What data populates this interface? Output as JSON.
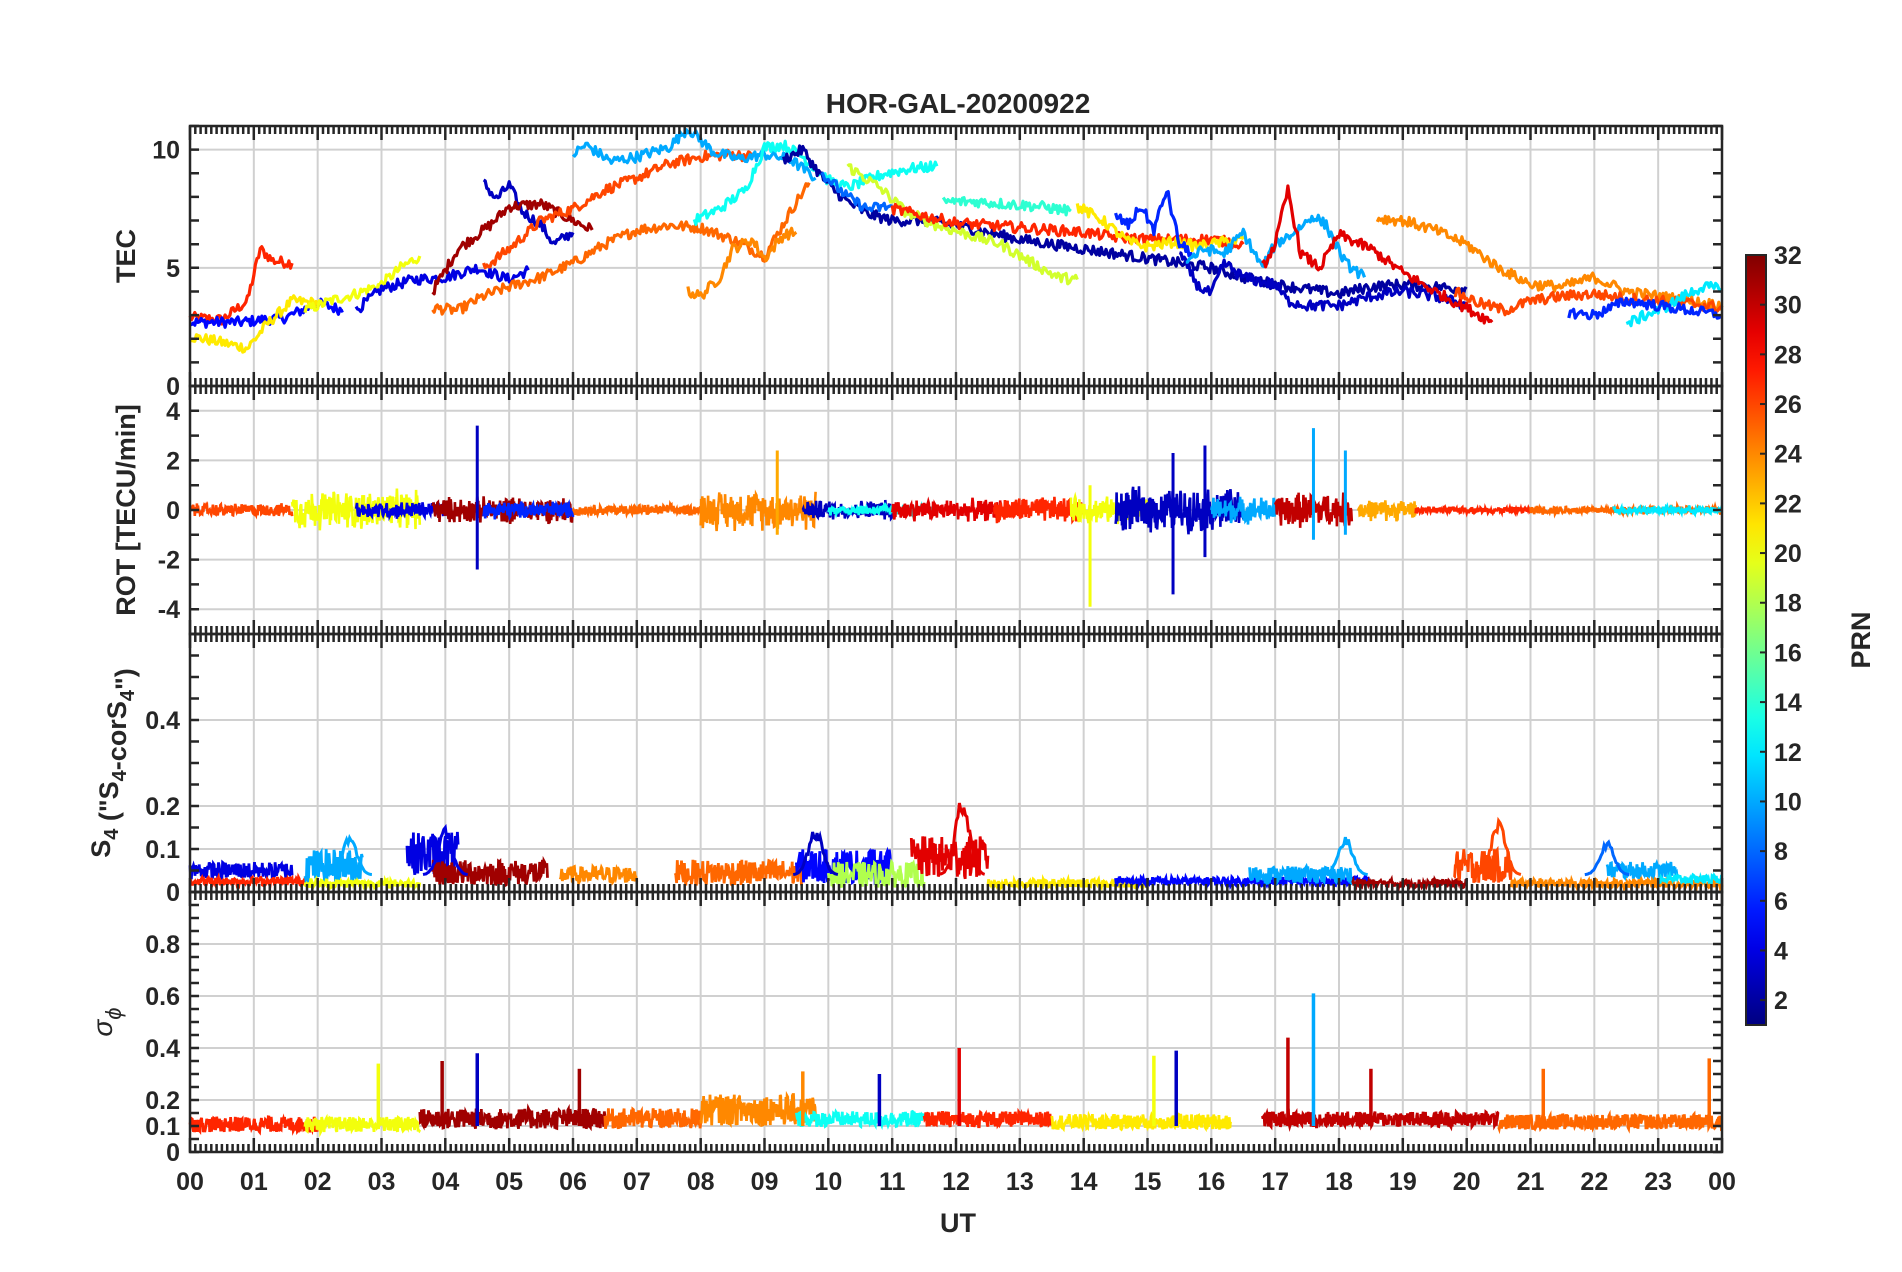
{
  "chart_data": {
    "type": "line",
    "title": "HOR-GAL-20200922",
    "xlabel": "UT",
    "x_ticks": [
      "00",
      "01",
      "02",
      "03",
      "04",
      "05",
      "06",
      "07",
      "08",
      "09",
      "10",
      "11",
      "12",
      "13",
      "14",
      "15",
      "16",
      "17",
      "18",
      "19",
      "20",
      "21",
      "22",
      "23",
      "00"
    ],
    "xlim_hours": [
      0,
      24
    ],
    "grid": true,
    "colorbar": {
      "label": "PRN",
      "range": [
        1,
        32
      ],
      "ticks": [
        2,
        4,
        6,
        8,
        10,
        12,
        14,
        16,
        18,
        20,
        22,
        24,
        26,
        28,
        30,
        32
      ],
      "colormap": "jet"
    },
    "panels": [
      {
        "key": "tec",
        "ylabel": "TEC",
        "ylim": [
          0,
          11
        ],
        "yticks": [
          0,
          5,
          10
        ]
      },
      {
        "key": "rot",
        "ylabel": "ROT [TECU/min]",
        "ylim": [
          -5,
          5
        ],
        "yticks": [
          -4,
          -2,
          0,
          2,
          4
        ]
      },
      {
        "key": "s4",
        "ylabel_main": "S",
        "ylabel_sub1": "4",
        "ylabel_mid": " (\"S",
        "ylabel_sub2": "4",
        "ylabel_mid2": "-corS",
        "ylabel_sub3": "4",
        "ylabel_end": "\")",
        "ylim": [
          0,
          0.6
        ],
        "yticks": [
          0,
          0.1,
          0.2,
          0.4
        ]
      },
      {
        "key": "sigma",
        "ylabel_main": "σ",
        "ylabel_sub1": "ϕ",
        "ylim": [
          0,
          1
        ],
        "yticks": [
          0,
          0.1,
          0.2,
          0.4,
          0.6,
          0.8
        ]
      }
    ],
    "tec_series": [
      {
        "prn": 27,
        "x": [
          0,
          0.5,
          0.9,
          1.1,
          1.3,
          1.6
        ],
        "y": [
          2.9,
          2.8,
          3.6,
          5.8,
          5.3,
          5.2
        ]
      },
      {
        "prn": 5,
        "x": [
          0,
          0.8,
          1.5,
          2.0,
          2.4
        ],
        "y": [
          2.7,
          2.7,
          2.9,
          3.5,
          3.2
        ]
      },
      {
        "prn": 21,
        "x": [
          0,
          0.4,
          0.9,
          1.2,
          1.6,
          2.0
        ],
        "y": [
          2.1,
          1.9,
          1.6,
          2.6,
          3.6,
          3.5
        ]
      },
      {
        "prn": 20,
        "x": [
          1.8,
          2.2,
          2.6,
          3.0,
          3.3,
          3.6
        ],
        "y": [
          3.2,
          3.6,
          3.9,
          4.3,
          5.0,
          5.5
        ]
      },
      {
        "prn": 4,
        "x": [
          2.6,
          3.0,
          3.5,
          4.0,
          4.5,
          5.0,
          5.3
        ],
        "y": [
          3.2,
          4.1,
          4.5,
          4.6,
          5.0,
          4.5,
          4.9
        ]
      },
      {
        "prn": 3,
        "x": [
          4.6,
          4.8,
          5.0,
          5.2,
          5.5,
          5.7,
          6.0
        ],
        "y": [
          8.6,
          7.9,
          8.5,
          7.4,
          6.8,
          6.0,
          6.5
        ]
      },
      {
        "prn": 31,
        "x": [
          3.8,
          4.2,
          4.7,
          5.0,
          5.5,
          6.0,
          6.3
        ],
        "y": [
          4.0,
          5.8,
          6.8,
          7.6,
          7.7,
          7.0,
          6.6
        ]
      },
      {
        "prn": 25,
        "x": [
          3.8,
          4.2,
          4.6,
          5.0,
          5.5,
          6.0,
          6.5,
          7.0,
          7.5,
          8.0,
          8.5,
          9.0,
          9.5,
          9.7
        ],
        "y": [
          3.3,
          3.2,
          3.8,
          4.2,
          4.6,
          5.2,
          6.0,
          6.6,
          6.8,
          6.7,
          6.2,
          5.5,
          7.8,
          8.6
        ]
      },
      {
        "prn": 26,
        "x": [
          4.6,
          5.0,
          5.5,
          6.0,
          6.5,
          7.0,
          7.5,
          8.0,
          8.5,
          8.8
        ],
        "y": [
          5.0,
          5.8,
          7.0,
          7.5,
          8.3,
          8.8,
          9.4,
          9.7,
          9.8,
          9.7
        ]
      },
      {
        "prn": 10,
        "x": [
          6.0,
          6.2,
          6.6,
          7.0,
          7.5,
          7.8,
          8.2,
          8.6,
          9.0,
          9.4,
          9.8
        ],
        "y": [
          9.8,
          10.2,
          9.5,
          9.7,
          10.1,
          10.9,
          9.9,
          9.6,
          9.8,
          9.6,
          8.8
        ]
      },
      {
        "prn": 24,
        "x": [
          7.8,
          8.0,
          8.3,
          8.5,
          8.8,
          9.0,
          9.3,
          9.5
        ],
        "y": [
          4.0,
          3.8,
          4.6,
          5.8,
          6.2,
          5.4,
          6.4,
          6.5
        ]
      },
      {
        "prn": 13,
        "x": [
          7.9,
          8.3,
          8.7,
          9.0,
          9.3,
          9.6,
          10.0,
          10.3,
          10.6,
          10.9,
          11.3,
          11.7
        ],
        "y": [
          7.0,
          7.5,
          8.3,
          10.1,
          10.2,
          9.7,
          8.7,
          8.4,
          8.7,
          9.0,
          9.2,
          9.3
        ]
      },
      {
        "prn": 2,
        "x": [
          9.3,
          9.6,
          9.8,
          10.0,
          10.3,
          10.6,
          11.0,
          11.5,
          12.0,
          12.5,
          13.0,
          13.5,
          14.0,
          14.5,
          15.0,
          15.5,
          16.0,
          16.5,
          17.0,
          17.5,
          18.0,
          18.5,
          19.0,
          19.5,
          20.0
        ],
        "y": [
          9.6,
          10.0,
          9.2,
          8.5,
          7.8,
          7.3,
          7.0,
          7.0,
          6.8,
          6.5,
          6.2,
          6.0,
          5.8,
          5.6,
          5.4,
          5.2,
          5.0,
          4.6,
          4.3,
          4.1,
          3.9,
          4.2,
          4.3,
          4.2,
          4.1
        ]
      },
      {
        "prn": 8,
        "x": [
          9.9,
          10.3,
          10.6,
          11.0
        ],
        "y": [
          9.0,
          8.0,
          7.5,
          7.6
        ]
      },
      {
        "prn": 19,
        "x": [
          10.3,
          10.8,
          11.2,
          11.7,
          12.2,
          12.7,
          13.2,
          13.6,
          13.9
        ],
        "y": [
          9.3,
          8.4,
          7.4,
          6.8,
          6.4,
          6.0,
          5.2,
          4.6,
          4.5
        ]
      },
      {
        "prn": 14,
        "x": [
          11.8,
          12.3,
          12.8,
          13.3,
          13.8
        ],
        "y": [
          7.8,
          7.8,
          7.7,
          7.6,
          7.4
        ]
      },
      {
        "prn": 27,
        "x": [
          11.0,
          11.5,
          12.0,
          12.5,
          13.0,
          13.5,
          14.0,
          14.5,
          15.0,
          15.5,
          16.0,
          16.5
        ],
        "y": [
          7.5,
          7.2,
          6.9,
          6.8,
          6.7,
          6.6,
          6.5,
          6.3,
          6.2,
          6.2,
          6.2,
          6.0
        ]
      },
      {
        "prn": 21,
        "x": [
          13.9,
          14.3,
          14.7,
          15.0,
          15.4,
          15.8,
          16.2,
          16.5
        ],
        "y": [
          7.6,
          7.0,
          6.1,
          5.9,
          6.1,
          5.9,
          6.1,
          6.2
        ]
      },
      {
        "prn": 6,
        "x": [
          14.5,
          14.7,
          14.9,
          15.1,
          15.3,
          15.5,
          15.7
        ],
        "y": [
          7.2,
          6.8,
          7.6,
          6.6,
          8.3,
          6.0,
          5.6
        ]
      },
      {
        "prn": 3,
        "x": [
          15.5,
          15.8,
          16.0,
          16.2,
          16.5,
          16.8,
          17.0,
          17.2,
          17.5,
          18.0,
          18.5,
          19.0,
          19.5,
          20.0
        ],
        "y": [
          5.6,
          4.2,
          3.9,
          5.2,
          4.6,
          4.4,
          4.3,
          3.6,
          3.4,
          3.4,
          3.8,
          4.0,
          3.8,
          3.4
        ]
      },
      {
        "prn": 10,
        "x": [
          15.6,
          15.9,
          16.2,
          16.5,
          16.8,
          17.0,
          17.3,
          17.6,
          17.8,
          18.1,
          18.4
        ],
        "y": [
          5.3,
          5.8,
          5.6,
          6.5,
          5.0,
          6.0,
          6.5,
          7.2,
          6.8,
          5.2,
          4.6
        ]
      },
      {
        "prn": 29,
        "x": [
          16.8,
          17.0,
          17.2,
          17.4,
          17.7,
          18.0,
          18.5,
          19.0,
          19.5,
          20.0,
          20.4
        ],
        "y": [
          5.0,
          6.0,
          8.3,
          5.6,
          5.0,
          6.4,
          5.8,
          4.8,
          4.0,
          3.3,
          2.7
        ]
      },
      {
        "prn": 24,
        "x": [
          18.6,
          19.0,
          19.5,
          20.0,
          20.5,
          21.0,
          21.5,
          22.0,
          22.5,
          23.0,
          23.5,
          24.0
        ],
        "y": [
          7.1,
          7.0,
          6.6,
          6.0,
          5.0,
          4.3,
          4.2,
          4.6,
          4.0,
          3.8,
          3.6,
          3.4
        ]
      },
      {
        "prn": 26,
        "x": [
          19.8,
          20.2,
          20.6,
          21.0,
          21.5,
          22.0,
          22.5,
          23.0,
          23.5,
          24.0
        ],
        "y": [
          4.0,
          3.5,
          3.2,
          3.6,
          3.8,
          3.9,
          3.7,
          3.6,
          3.5,
          3.3
        ]
      },
      {
        "prn": 12,
        "x": [
          22.5,
          22.8,
          23.1,
          23.4,
          23.7,
          24.0
        ],
        "y": [
          2.6,
          3.0,
          3.3,
          3.8,
          4.2,
          4.1
        ]
      },
      {
        "prn": 6,
        "x": [
          21.6,
          22.0,
          22.5,
          23.0,
          23.5,
          24.0
        ],
        "y": [
          3.1,
          3.0,
          3.6,
          3.4,
          3.2,
          3.0
        ]
      }
    ],
    "rot_segments": [
      {
        "prn": 26,
        "x0": 0,
        "x1": 1.6,
        "amp": 0.3
      },
      {
        "prn": 20,
        "x0": 1.6,
        "x1": 3.6,
        "amp": 0.9
      },
      {
        "prn": 4,
        "x0": 2.6,
        "x1": 4.0,
        "amp": 0.4
      },
      {
        "prn": 31,
        "x0": 3.8,
        "x1": 6.0,
        "amp": 0.6
      },
      {
        "prn": 6,
        "x0": 4.6,
        "x1": 6.0,
        "amp": 0.4
      },
      {
        "prn": 25,
        "x0": 6.0,
        "x1": 8.0,
        "amp": 0.25
      },
      {
        "prn": 24,
        "x0": 8.0,
        "x1": 9.8,
        "amp": 0.9
      },
      {
        "prn": 3,
        "x0": 9.6,
        "x1": 11.0,
        "amp": 0.45
      },
      {
        "prn": 13,
        "x0": 10.0,
        "x1": 11.7,
        "amp": 0.25
      },
      {
        "prn": 29,
        "x0": 11.0,
        "x1": 12.7,
        "amp": 0.5
      },
      {
        "prn": 27,
        "x0": 12.6,
        "x1": 14.0,
        "amp": 0.6
      },
      {
        "prn": 20,
        "x0": 13.8,
        "x1": 15.0,
        "amp": 0.6
      },
      {
        "prn": 3,
        "x0": 14.5,
        "x1": 16.5,
        "amp": 1.0
      },
      {
        "prn": 10,
        "x0": 16.0,
        "x1": 17.0,
        "amp": 0.6
      },
      {
        "prn": 30,
        "x0": 17.0,
        "x1": 18.2,
        "amp": 0.8
      },
      {
        "prn": 23,
        "x0": 18.3,
        "x1": 19.2,
        "amp": 0.5
      },
      {
        "prn": 27,
        "x0": 19.2,
        "x1": 21.0,
        "amp": 0.15
      },
      {
        "prn": 25,
        "x0": 21.0,
        "x1": 24.0,
        "amp": 0.2
      },
      {
        "prn": 12,
        "x0": 22.3,
        "x1": 24.0,
        "amp": 0.2
      }
    ],
    "rot_spikes": [
      {
        "prn": 3,
        "x": 4.5,
        "ymin": -2.4,
        "ymax": 3.4
      },
      {
        "prn": 23,
        "x": 9.2,
        "ymin": -1.0,
        "ymax": 2.4
      },
      {
        "prn": 20,
        "x": 14.1,
        "ymin": -3.9,
        "ymax": 1.0
      },
      {
        "prn": 3,
        "x": 15.4,
        "ymin": -3.4,
        "ymax": 2.3
      },
      {
        "prn": 3,
        "x": 15.9,
        "ymin": -1.9,
        "ymax": 2.6
      },
      {
        "prn": 10,
        "x": 17.6,
        "ymin": -1.2,
        "ymax": 3.3
      },
      {
        "prn": 10,
        "x": 18.1,
        "ymin": -1.0,
        "ymax": 2.4
      }
    ],
    "s4_segments": [
      {
        "prn": 4,
        "x0": 0,
        "x1": 1.6,
        "base": 0.05,
        "amp": 0.02
      },
      {
        "prn": 27,
        "x0": 0,
        "x1": 1.8,
        "base": 0.025,
        "amp": 0.01
      },
      {
        "prn": 10,
        "x0": 1.8,
        "x1": 2.7,
        "base": 0.06,
        "amp": 0.04
      },
      {
        "prn": 20,
        "x0": 1.8,
        "x1": 3.6,
        "base": 0.02,
        "amp": 0.01
      },
      {
        "prn": 4,
        "x0": 3.4,
        "x1": 4.2,
        "base": 0.09,
        "amp": 0.05
      },
      {
        "prn": 31,
        "x0": 3.8,
        "x1": 5.6,
        "base": 0.045,
        "amp": 0.03
      },
      {
        "prn": 24,
        "x0": 5.8,
        "x1": 7.0,
        "base": 0.04,
        "amp": 0.02
      },
      {
        "prn": 25,
        "x0": 7.6,
        "x1": 9.6,
        "base": 0.045,
        "amp": 0.03
      },
      {
        "prn": 5,
        "x0": 9.5,
        "x1": 11.0,
        "base": 0.06,
        "amp": 0.04
      },
      {
        "prn": 18,
        "x0": 10.0,
        "x1": 11.5,
        "base": 0.04,
        "amp": 0.03
      },
      {
        "prn": 29,
        "x0": 11.3,
        "x1": 12.5,
        "base": 0.08,
        "amp": 0.05
      },
      {
        "prn": 21,
        "x0": 12.5,
        "x1": 15.0,
        "base": 0.02,
        "amp": 0.01
      },
      {
        "prn": 5,
        "x0": 14.5,
        "x1": 18.5,
        "base": 0.025,
        "amp": 0.01
      },
      {
        "prn": 10,
        "x0": 16.6,
        "x1": 18.2,
        "base": 0.04,
        "amp": 0.02
      },
      {
        "prn": 31,
        "x0": 18.2,
        "x1": 20.0,
        "base": 0.02,
        "amp": 0.01
      },
      {
        "prn": 26,
        "x0": 19.8,
        "x1": 20.7,
        "base": 0.06,
        "amp": 0.04
      },
      {
        "prn": 10,
        "x0": 22.2,
        "x1": 23.3,
        "base": 0.05,
        "amp": 0.02
      },
      {
        "prn": 24,
        "x0": 20.7,
        "x1": 24.0,
        "base": 0.02,
        "amp": 0.01
      },
      {
        "prn": 12,
        "x0": 23.0,
        "x1": 24.0,
        "base": 0.03,
        "amp": 0.01
      }
    ],
    "s4_peaks": [
      {
        "prn": 4,
        "x": 4.0,
        "y": 0.15
      },
      {
        "prn": 10,
        "x": 2.5,
        "y": 0.13
      },
      {
        "prn": 3,
        "x": 9.8,
        "y": 0.15
      },
      {
        "prn": 29,
        "x": 12.1,
        "y": 0.23
      },
      {
        "prn": 26,
        "x": 20.5,
        "y": 0.17
      },
      {
        "prn": 10,
        "x": 18.1,
        "y": 0.13
      },
      {
        "prn": 8,
        "x": 22.2,
        "y": 0.12
      }
    ],
    "sigma_segments": [
      {
        "prn": 27,
        "x0": 0,
        "x1": 2.0,
        "base": 0.1,
        "amp": 0.03
      },
      {
        "prn": 20,
        "x0": 1.8,
        "x1": 3.6,
        "base": 0.1,
        "amp": 0.03
      },
      {
        "prn": 31,
        "x0": 3.6,
        "x1": 6.5,
        "base": 0.12,
        "amp": 0.04
      },
      {
        "prn": 25,
        "x0": 6.5,
        "x1": 8.0,
        "base": 0.12,
        "amp": 0.04
      },
      {
        "prn": 24,
        "x0": 8.0,
        "x1": 9.8,
        "base": 0.15,
        "amp": 0.06
      },
      {
        "prn": 13,
        "x0": 9.5,
        "x1": 11.5,
        "base": 0.12,
        "amp": 0.03
      },
      {
        "prn": 27,
        "x0": 11.5,
        "x1": 13.5,
        "base": 0.12,
        "amp": 0.03
      },
      {
        "prn": 21,
        "x0": 13.5,
        "x1": 16.3,
        "base": 0.11,
        "amp": 0.03
      },
      {
        "prn": 30,
        "x0": 16.8,
        "x1": 20.5,
        "base": 0.12,
        "amp": 0.03
      },
      {
        "prn": 25,
        "x0": 20.5,
        "x1": 24.0,
        "base": 0.11,
        "amp": 0.03
      }
    ],
    "sigma_peaks": [
      {
        "prn": 20,
        "x": 2.95,
        "y": 0.34
      },
      {
        "prn": 31,
        "x": 3.95,
        "y": 0.35
      },
      {
        "prn": 3,
        "x": 4.5,
        "y": 0.38
      },
      {
        "prn": 31,
        "x": 6.1,
        "y": 0.32
      },
      {
        "prn": 24,
        "x": 9.6,
        "y": 0.31
      },
      {
        "prn": 3,
        "x": 10.8,
        "y": 0.3
      },
      {
        "prn": 29,
        "x": 12.05,
        "y": 0.4
      },
      {
        "prn": 20,
        "x": 15.1,
        "y": 0.37
      },
      {
        "prn": 3,
        "x": 15.45,
        "y": 0.39
      },
      {
        "prn": 30,
        "x": 17.2,
        "y": 0.44
      },
      {
        "prn": 10,
        "x": 17.6,
        "y": 0.61
      },
      {
        "prn": 30,
        "x": 18.5,
        "y": 0.32
      },
      {
        "prn": 25,
        "x": 21.2,
        "y": 0.32
      },
      {
        "prn": 25,
        "x": 23.8,
        "y": 0.36
      }
    ]
  }
}
